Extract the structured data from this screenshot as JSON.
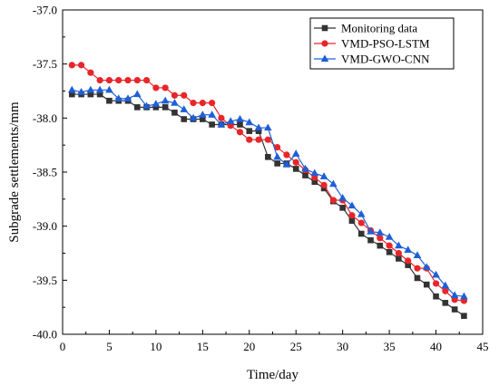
{
  "chart_data": {
    "type": "line",
    "title": "",
    "xlabel": "Time/day",
    "ylabel": "Subgrade settlements/mm",
    "xlim": [
      0,
      45
    ],
    "ylim": [
      -40.0,
      -37.0
    ],
    "xticks": [
      0,
      5,
      10,
      15,
      20,
      25,
      30,
      35,
      40,
      45
    ],
    "yticks": [
      -37.0,
      -37.5,
      -38.0,
      -38.5,
      -39.0,
      -39.5,
      -40.0
    ],
    "ytick_labels": [
      "-37.0",
      "-37.5",
      "-38.0",
      "-38.5",
      "-39.0",
      "-39.5",
      "-40.0"
    ],
    "grid": false,
    "legend_position": "top-right",
    "x": [
      1,
      2,
      3,
      4,
      5,
      6,
      7,
      8,
      9,
      10,
      11,
      12,
      13,
      14,
      15,
      16,
      17,
      18,
      19,
      20,
      21,
      22,
      23,
      24,
      25,
      26,
      27,
      28,
      29,
      30,
      31,
      32,
      33,
      34,
      35,
      36,
      37,
      38,
      39,
      40,
      41,
      42,
      43
    ],
    "series": [
      {
        "name": "Monitoring data",
        "color": "#333333",
        "marker": "square",
        "values": [
          -37.78,
          -37.78,
          -37.78,
          -37.78,
          -37.84,
          -37.84,
          -37.84,
          -37.9,
          -37.9,
          -37.9,
          -37.9,
          -37.95,
          -38.01,
          -38.01,
          -38.01,
          -38.06,
          -38.06,
          -38.06,
          -38.06,
          -38.12,
          -38.12,
          -38.36,
          -38.42,
          -38.42,
          -38.47,
          -38.53,
          -38.59,
          -38.65,
          -38.77,
          -38.83,
          -38.95,
          -39.07,
          -39.13,
          -39.18,
          -39.24,
          -39.3,
          -39.36,
          -39.48,
          -39.54,
          -39.65,
          -39.71,
          -39.77,
          -39.83
        ]
      },
      {
        "name": "VMD-PSO-LSTM",
        "color": "#e8262a",
        "marker": "circle",
        "values": [
          -37.51,
          -37.51,
          -37.58,
          -37.65,
          -37.65,
          -37.65,
          -37.65,
          -37.65,
          -37.65,
          -37.72,
          -37.72,
          -37.79,
          -37.79,
          -37.86,
          -37.86,
          -37.86,
          -38.0,
          -38.07,
          -38.13,
          -38.2,
          -38.2,
          -38.2,
          -38.27,
          -38.34,
          -38.41,
          -38.48,
          -38.55,
          -38.62,
          -38.76,
          -38.76,
          -38.9,
          -38.97,
          -39.04,
          -39.11,
          -39.18,
          -39.25,
          -39.32,
          -39.39,
          -39.39,
          -39.53,
          -39.6,
          -39.68,
          -39.69
        ]
      },
      {
        "name": "VMD-GWO-CNN",
        "color": "#1f5fd6",
        "marker": "triangle",
        "values": [
          -37.74,
          -37.76,
          -37.74,
          -37.74,
          -37.74,
          -37.82,
          -37.82,
          -37.78,
          -37.89,
          -37.87,
          -37.84,
          -37.86,
          -37.92,
          -38.0,
          -37.97,
          -37.97,
          -38.06,
          -38.03,
          -38.01,
          -38.04,
          -38.09,
          -38.09,
          -38.36,
          -38.43,
          -38.33,
          -38.47,
          -38.51,
          -38.54,
          -38.61,
          -38.74,
          -38.81,
          -38.89,
          -39.05,
          -39.06,
          -39.1,
          -39.18,
          -39.22,
          -39.27,
          -39.38,
          -39.45,
          -39.55,
          -39.64,
          -39.65
        ]
      }
    ]
  }
}
